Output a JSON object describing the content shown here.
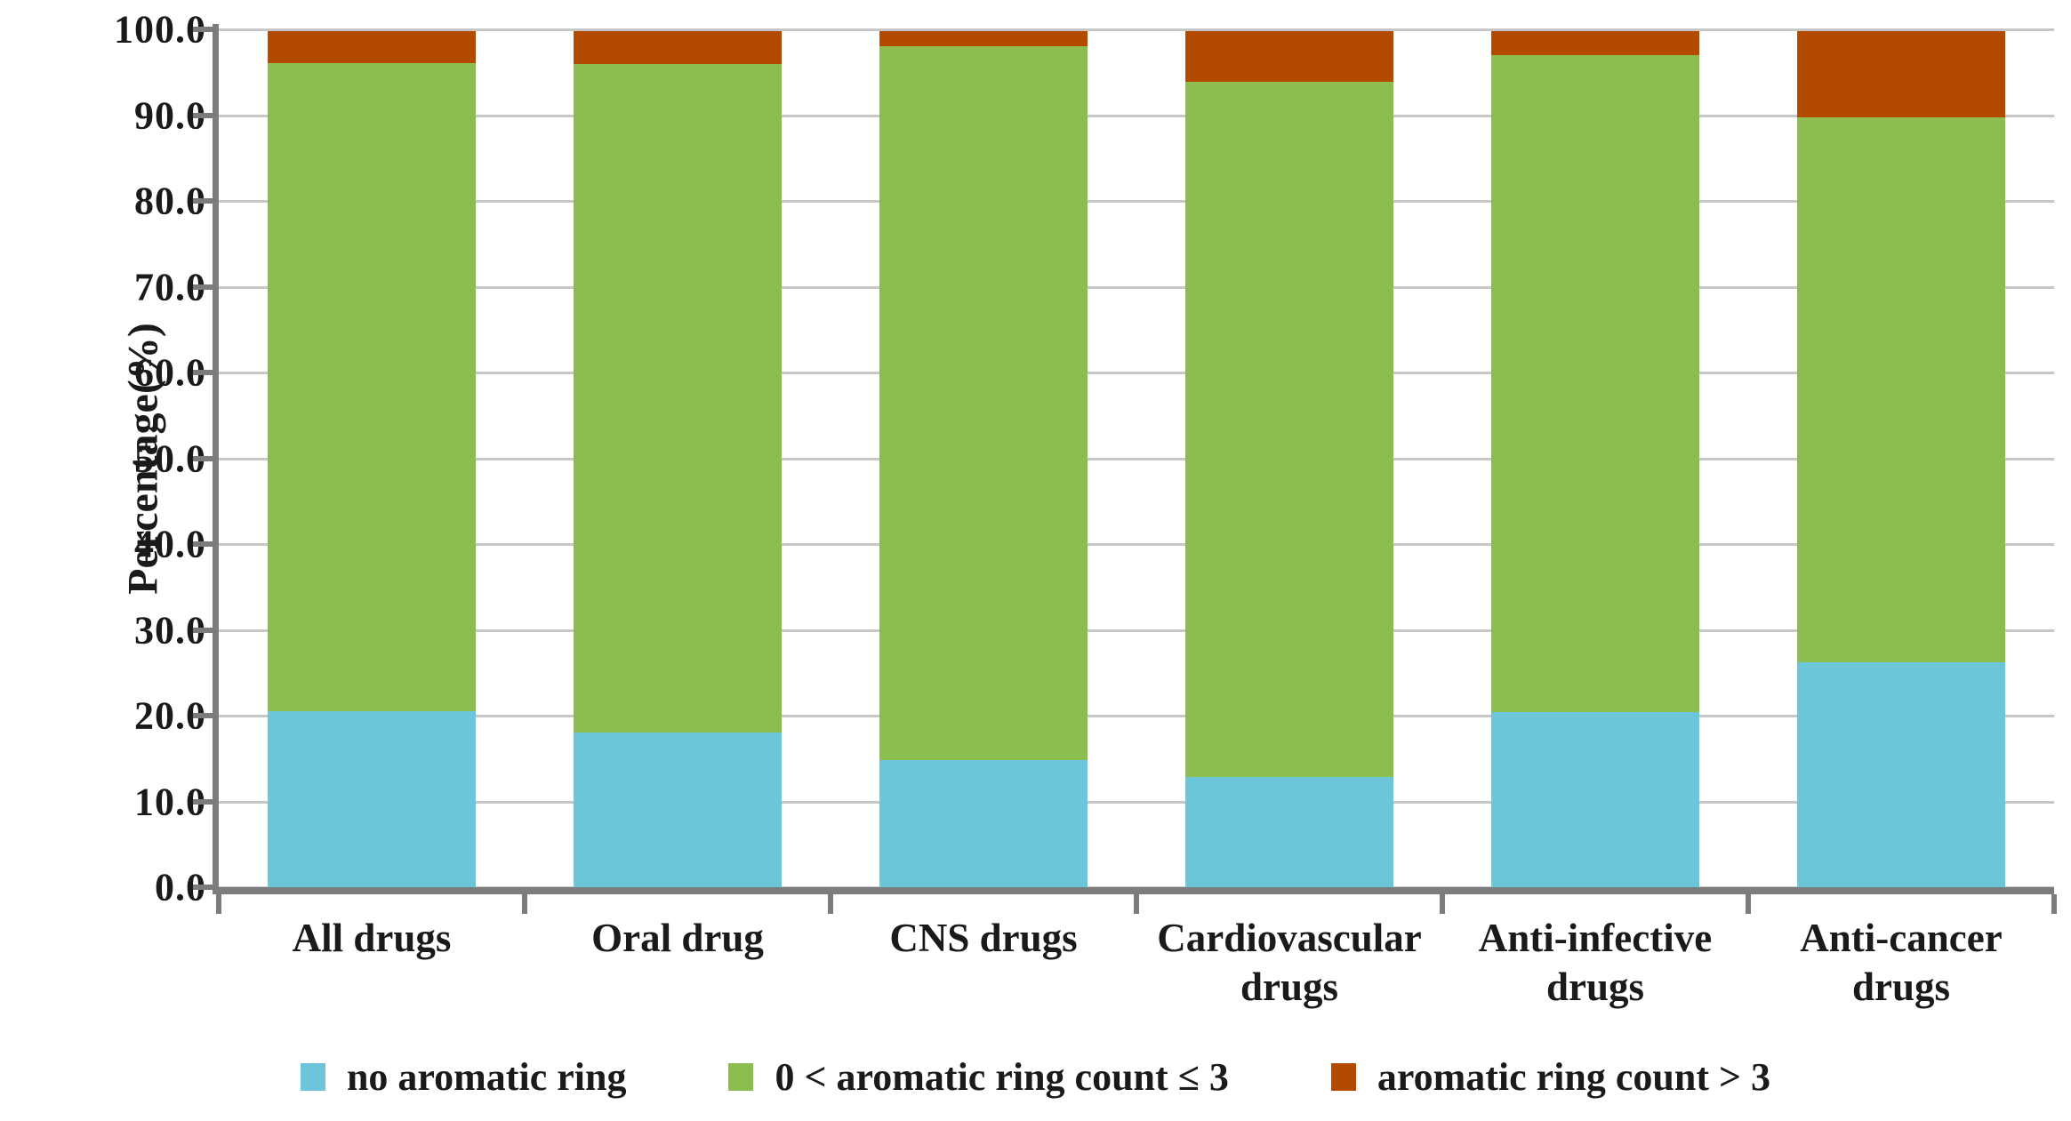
{
  "figure": {
    "background": "#FFFFFF",
    "text_color": "#1A1A1A"
  },
  "chart_data": {
    "type": "bar",
    "stacked": true,
    "title": "",
    "xlabel": "",
    "ylabel": "Percentage(%)",
    "ylim": [
      0,
      100
    ],
    "ytick_step": 10,
    "yticks": [
      "100.0",
      "90.0",
      "80.0",
      "70.0",
      "60.0",
      "50.0",
      "40.0",
      "30.0",
      "20.0",
      "10.0",
      "0.0"
    ],
    "grid": true,
    "legend_position": "bottom",
    "categories": [
      "All drugs",
      "Oral drug",
      "CNS drugs",
      "Cardiovascular drugs",
      "Anti-infective drugs",
      "Anti-cancer drugs"
    ],
    "series": [
      {
        "name": "no aromatic ring",
        "color": "#6CC6D9",
        "values": [
          20.5,
          18.0,
          14.8,
          12.8,
          20.4,
          26.2
        ]
      },
      {
        "name": "0 < aromatic ring count ≤ 3",
        "color": "#8CBE4F",
        "values": [
          75.6,
          78.0,
          83.2,
          81.1,
          76.6,
          63.5
        ]
      },
      {
        "name": "aromatic ring count > 3",
        "color": "#B34A00",
        "values": [
          3.9,
          4.0,
          2.0,
          6.1,
          3.0,
          10.3
        ]
      }
    ],
    "colors": {
      "axis": "#7C7C7C",
      "gridline": "#C7C7C7"
    }
  }
}
